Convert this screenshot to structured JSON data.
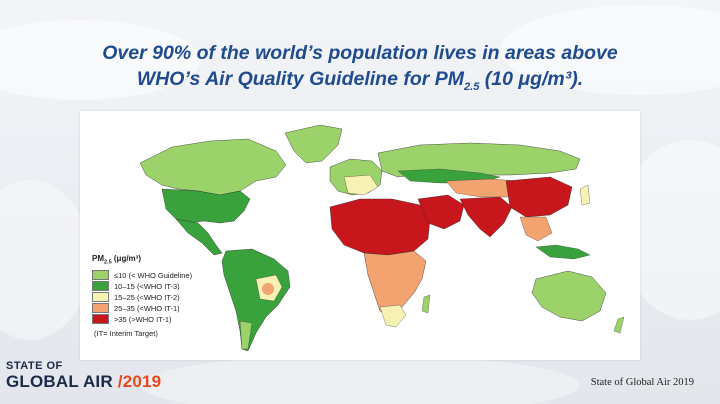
{
  "headline": {
    "line1": "Over 90% of the world’s population lives in areas above",
    "line2_prefix": "WHO’s Air Quality Guideline for PM",
    "line2_sub": "2.5",
    "line2_suffix": " (10 μg/m³)."
  },
  "legend": {
    "title_prefix": "PM",
    "title_sub": "2.5",
    "title_suffix": " (μg/m³)",
    "items": [
      {
        "label": "≤10 (< WHO Guideline)",
        "color": "#9bd36a"
      },
      {
        "label": "10–15 (<WHO IT-3)",
        "color": "#3aa23c"
      },
      {
        "label": "15–25 (<WHO IT-2)",
        "color": "#f7f2b4"
      },
      {
        "label": "25–35 (<WHO IT-1)",
        "color": "#f2a370"
      },
      {
        "label": ">35   (>WHO IT-1)",
        "color": "#c8161d"
      }
    ],
    "note": "(IT= Interim Target)"
  },
  "brand": {
    "line1": "STATE OF",
    "line2": "GLOBAL AIR",
    "slash": "/",
    "year": "2019"
  },
  "credit": "State of Global Air 2019"
}
